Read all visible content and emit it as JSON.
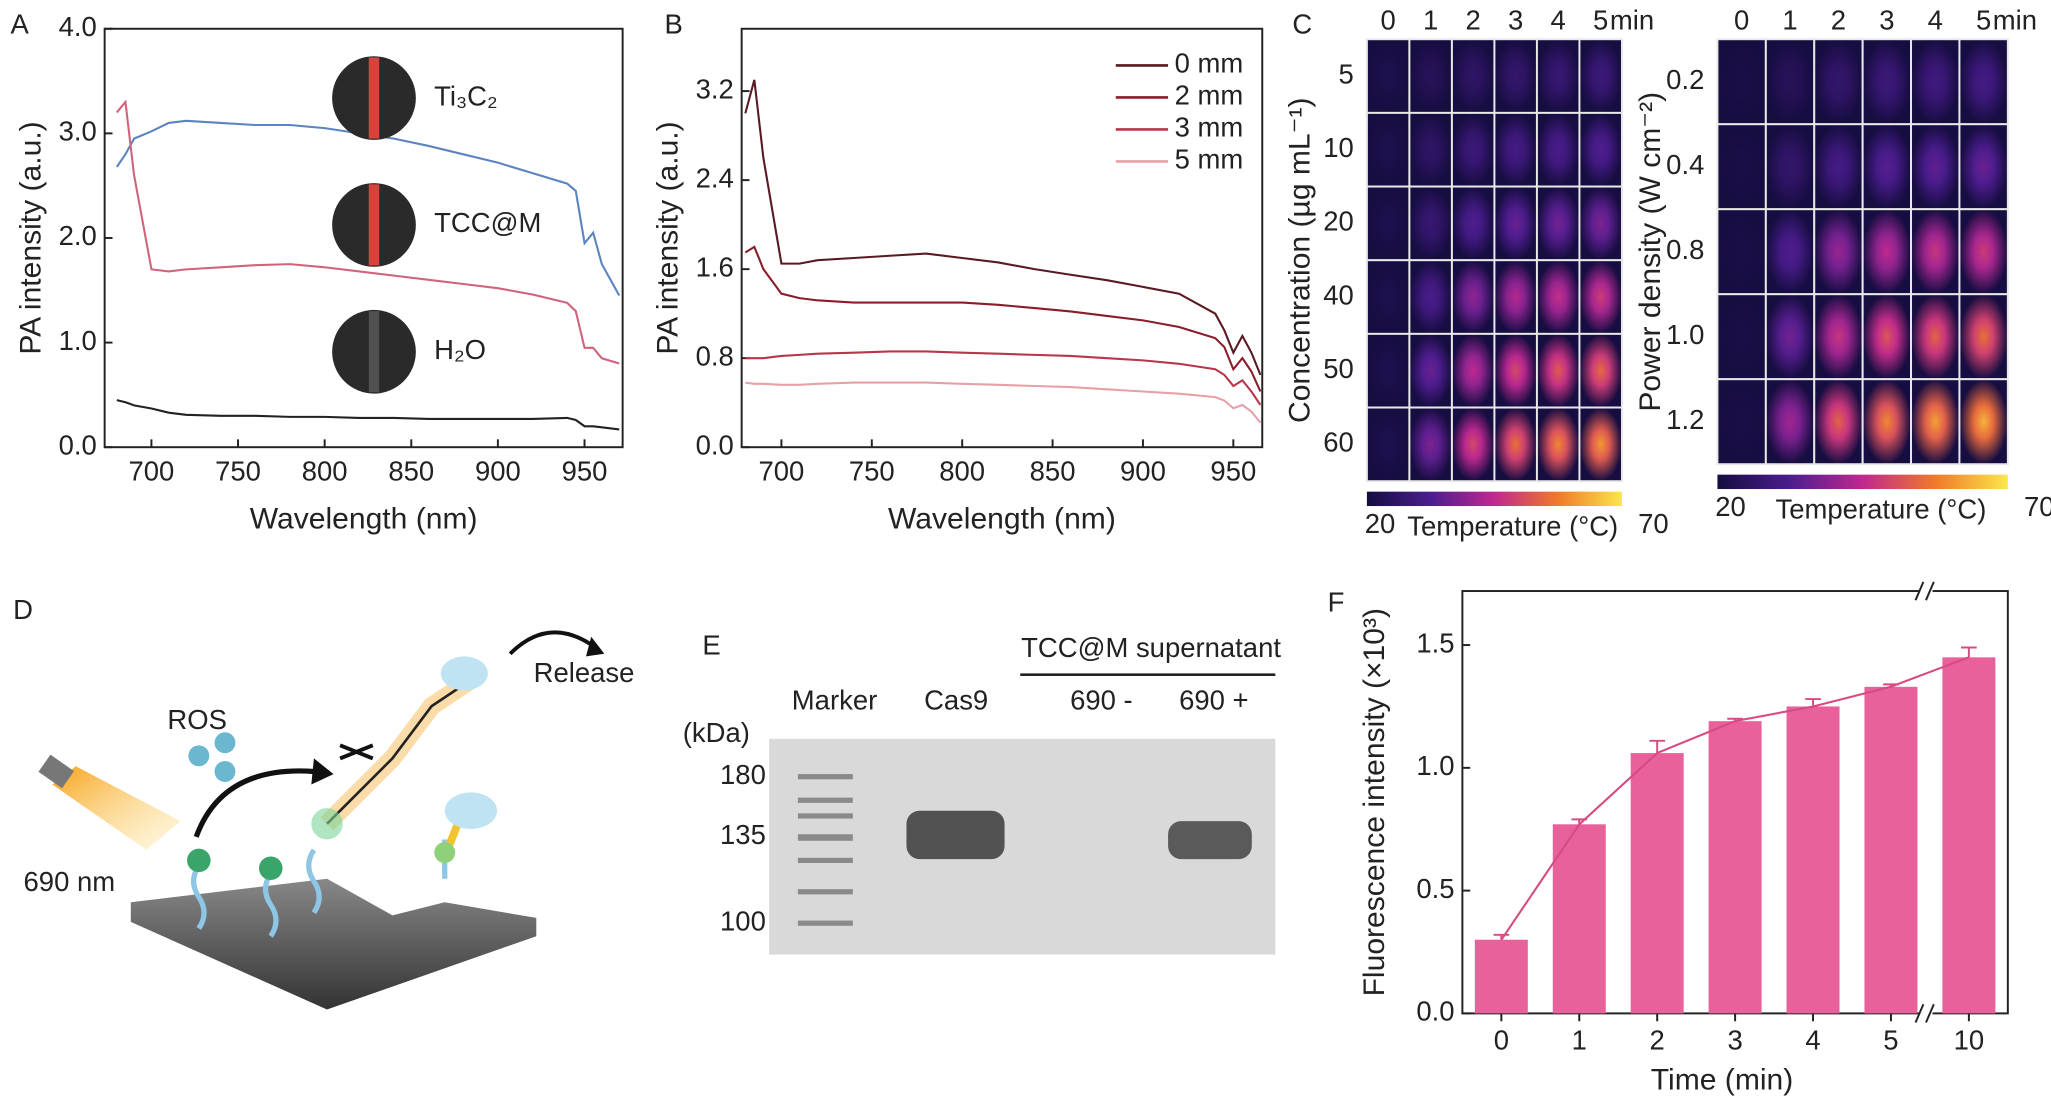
{
  "chart_data": [
    {
      "type": "line",
      "panel": "A",
      "xlabel": "Wavelength (nm)",
      "ylabel": "PA intensity (a.u.)",
      "x": [
        680,
        685,
        690,
        700,
        710,
        720,
        740,
        760,
        780,
        800,
        820,
        840,
        860,
        880,
        900,
        920,
        940,
        945,
        950,
        955,
        960,
        970
      ],
      "xlim": [
        673,
        972
      ],
      "xticks": [
        700,
        750,
        800,
        850,
        900,
        950
      ],
      "ylim": [
        0,
        4
      ],
      "yticks": [
        {
          "value": 0,
          "label": "0.0"
        },
        {
          "value": 1,
          "label": "1.0"
        },
        {
          "value": 2,
          "label": "2.0"
        },
        {
          "value": 3,
          "label": "3.0"
        },
        {
          "value": 4,
          "label": "4.0"
        }
      ],
      "legend": "inset",
      "series": [
        {
          "name": "Ti₃C₂",
          "color": "#5b84c0",
          "values": [
            2.68,
            2.8,
            2.95,
            3.02,
            3.1,
            3.12,
            3.1,
            3.08,
            3.08,
            3.05,
            3.0,
            2.95,
            2.88,
            2.8,
            2.72,
            2.62,
            2.52,
            2.45,
            1.95,
            2.05,
            1.75,
            1.45
          ]
        },
        {
          "name": "TCC@M",
          "color": "#d0647a",
          "values": [
            3.2,
            3.3,
            2.6,
            1.7,
            1.68,
            1.7,
            1.72,
            1.74,
            1.75,
            1.72,
            1.68,
            1.64,
            1.6,
            1.56,
            1.52,
            1.46,
            1.38,
            1.3,
            0.95,
            0.95,
            0.85,
            0.8
          ]
        },
        {
          "name": "H₂O",
          "color": "#222222",
          "values": [
            0.45,
            0.43,
            0.4,
            0.37,
            0.33,
            0.31,
            0.3,
            0.3,
            0.29,
            0.29,
            0.28,
            0.28,
            0.27,
            0.27,
            0.27,
            0.27,
            0.28,
            0.26,
            0.2,
            0.2,
            0.19,
            0.17
          ]
        }
      ]
    },
    {
      "type": "line",
      "panel": "B",
      "xlabel": "Wavelength (nm)",
      "ylabel": "PA intensity (a.u.)",
      "x": [
        680,
        685,
        690,
        700,
        710,
        720,
        740,
        760,
        780,
        800,
        820,
        840,
        860,
        880,
        900,
        920,
        940,
        945,
        950,
        955,
        960,
        965
      ],
      "xlim": [
        678,
        966
      ],
      "xticks": [
        700,
        750,
        800,
        850,
        900,
        950
      ],
      "ylim": [
        0,
        3.76
      ],
      "yticks": [
        {
          "value": 0,
          "label": "0.0"
        },
        0.8,
        1.6,
        2.4,
        3.2
      ],
      "legend": "upper right",
      "series": [
        {
          "name": "0 mm",
          "color": "#5a1a22",
          "values": [
            3.0,
            3.3,
            2.6,
            1.65,
            1.65,
            1.68,
            1.7,
            1.72,
            1.74,
            1.7,
            1.66,
            1.6,
            1.55,
            1.5,
            1.44,
            1.38,
            1.2,
            1.05,
            0.85,
            1.0,
            0.85,
            0.65
          ]
        },
        {
          "name": "2 mm",
          "color": "#8b1c2a",
          "values": [
            1.75,
            1.8,
            1.6,
            1.38,
            1.34,
            1.32,
            1.3,
            1.3,
            1.3,
            1.3,
            1.28,
            1.25,
            1.22,
            1.18,
            1.14,
            1.08,
            0.98,
            0.9,
            0.7,
            0.8,
            0.68,
            0.5
          ]
        },
        {
          "name": "3 mm",
          "color": "#b8364a",
          "values": [
            0.8,
            0.8,
            0.8,
            0.82,
            0.83,
            0.84,
            0.85,
            0.86,
            0.86,
            0.85,
            0.84,
            0.83,
            0.82,
            0.8,
            0.78,
            0.75,
            0.7,
            0.65,
            0.55,
            0.6,
            0.5,
            0.38
          ]
        },
        {
          "name": "5 mm",
          "color": "#e8a0a8",
          "values": [
            0.58,
            0.57,
            0.57,
            0.56,
            0.56,
            0.57,
            0.58,
            0.58,
            0.58,
            0.57,
            0.56,
            0.55,
            0.54,
            0.52,
            0.5,
            0.48,
            0.45,
            0.42,
            0.35,
            0.38,
            0.32,
            0.22
          ]
        }
      ]
    },
    {
      "type": "heatmap",
      "panel": "C",
      "ylabel": "Concentration (µg mL⁻¹)",
      "colorbar_label": "Temperature (°C)",
      "x_unit": "min",
      "categories": [
        "0",
        "1",
        "2",
        "3",
        "4",
        "5"
      ],
      "rows": [
        "5",
        "10",
        "20",
        "40",
        "50",
        "60"
      ],
      "clim": [
        20,
        70
      ],
      "colormap": [
        "#160d40",
        "#4b1d8f",
        "#c0288f",
        "#f07a2a",
        "#fbe74a"
      ],
      "values": [
        [
          22,
          24,
          26,
          27,
          28,
          29
        ],
        [
          22,
          26,
          29,
          31,
          32,
          33
        ],
        [
          22,
          28,
          33,
          36,
          37,
          38
        ],
        [
          22,
          32,
          40,
          44,
          46,
          48
        ],
        [
          22,
          36,
          45,
          50,
          53,
          55
        ],
        [
          22,
          38,
          50,
          56,
          59,
          61
        ]
      ]
    },
    {
      "type": "heatmap",
      "ylabel": "Power density (W cm⁻²)",
      "colorbar_label": "Temperature (°C)",
      "x_unit": "min",
      "categories": [
        "0",
        "1",
        "2",
        "3",
        "4",
        "5"
      ],
      "rows": [
        "0.2",
        "0.4",
        "0.8",
        "1.0",
        "1.2"
      ],
      "clim": [
        20,
        70
      ],
      "colormap": [
        "#160d40",
        "#4b1d8f",
        "#c0288f",
        "#f07a2a",
        "#fbe74a"
      ],
      "values": [
        [
          21,
          24,
          27,
          29,
          30,
          31
        ],
        [
          21,
          27,
          31,
          34,
          35,
          36
        ],
        [
          21,
          33,
          41,
          45,
          47,
          48
        ],
        [
          21,
          37,
          47,
          52,
          54,
          56
        ],
        [
          21,
          42,
          54,
          59,
          62,
          64
        ]
      ]
    },
    {
      "type": "bar",
      "panel": "F",
      "xlabel": "Time (min)",
      "ylabel": "Fluorescence intensity (×10³)",
      "categories": [
        "0",
        "1",
        "2",
        "3",
        "4",
        "5",
        "10"
      ],
      "color": "#e8619a",
      "line_color": "#d84a82",
      "values": [
        0.3,
        0.77,
        1.06,
        1.19,
        1.25,
        1.33,
        1.45
      ],
      "errors": [
        0.02,
        0.02,
        0.05,
        0.01,
        0.03,
        0.01,
        0.04
      ],
      "ylim": [
        0,
        1.72
      ],
      "yticks": [
        {
          "value": 0,
          "label": "0.0"
        },
        0.5,
        {
          "value": 1,
          "label": "1.0"
        },
        1.5
      ]
    }
  ],
  "diagram": {
    "panel": "D",
    "ros": "ROS",
    "light": "690 nm",
    "release": "Release"
  },
  "gel": {
    "panel": "E",
    "header": "TCC@M supernatant",
    "lanes": [
      "Marker",
      "Cas9",
      "690 -",
      "690 +"
    ],
    "unit": "(kDa)",
    "markers": [
      180,
      135,
      100
    ]
  }
}
